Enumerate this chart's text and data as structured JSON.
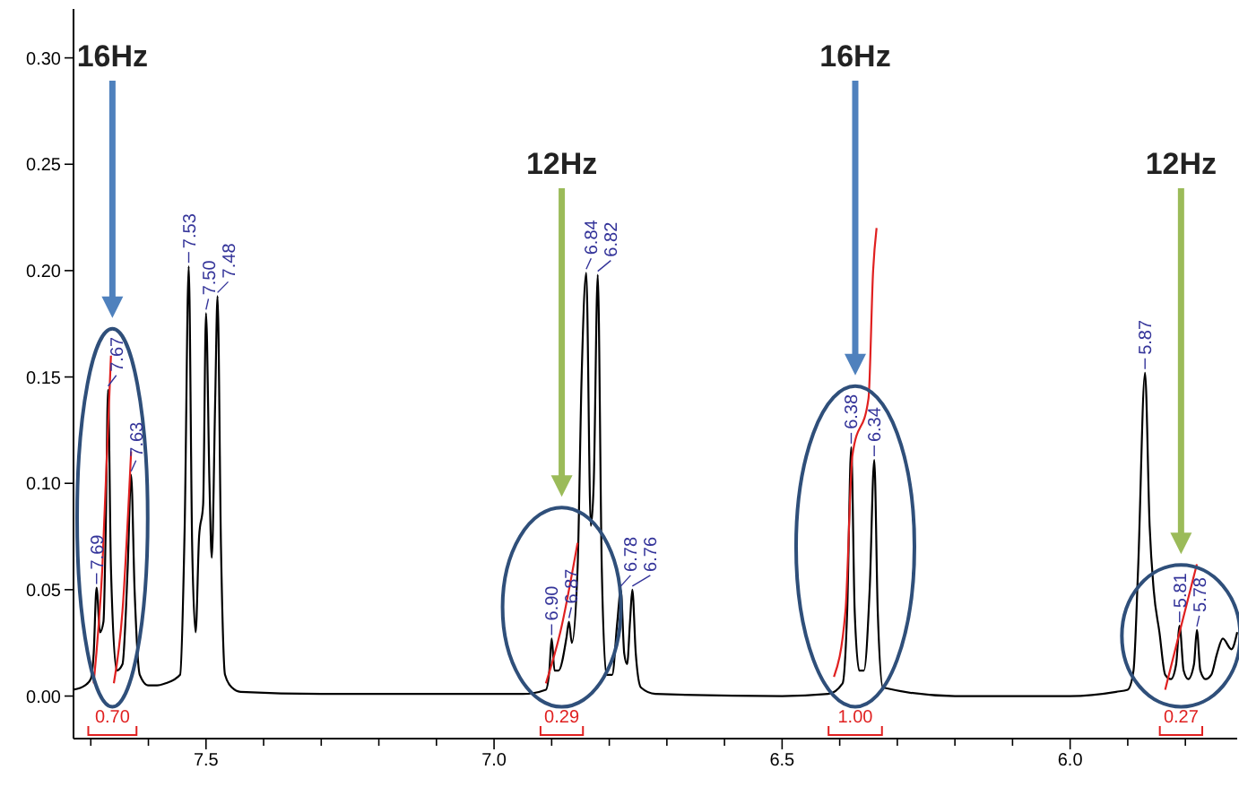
{
  "chart_data": {
    "type": "line",
    "xlim": [
      7.73,
      5.71
    ],
    "ylim": [
      -0.02,
      0.323
    ],
    "xticks": [
      {
        "value": 7.7,
        "label": null
      },
      {
        "value": 7.6,
        "label": null
      },
      7.5,
      {
        "value": 7.4,
        "label": null
      },
      {
        "value": 7.3,
        "label": null
      },
      {
        "value": 7.2,
        "label": null
      },
      {
        "value": 7.1,
        "label": null
      },
      {
        "value": 7.0,
        "label": "7.0"
      },
      {
        "value": 6.9,
        "label": null
      },
      {
        "value": 6.8,
        "label": null
      },
      {
        "value": 6.7,
        "label": null
      },
      {
        "value": 6.6,
        "label": null
      },
      6.5,
      {
        "value": 6.4,
        "label": null
      },
      {
        "value": 6.3,
        "label": null
      },
      {
        "value": 6.2,
        "label": null
      },
      {
        "value": 6.1,
        "label": null
      },
      {
        "value": 6.0,
        "label": "6.0"
      },
      {
        "value": 5.9,
        "label": null
      },
      {
        "value": 5.8,
        "label": null
      }
    ],
    "yticks": [
      {
        "value": 0,
        "label": "0.00"
      },
      {
        "value": 0.05,
        "label": "0.05"
      },
      {
        "value": 0.1,
        "label": "0.10"
      },
      {
        "value": 0.15,
        "label": "0.15"
      },
      {
        "value": 0.2,
        "label": "0.20"
      },
      {
        "value": 0.25,
        "label": "0.25"
      },
      {
        "value": 0.3,
        "label": "0.30"
      }
    ],
    "marker": "none",
    "series": [
      {
        "color": "#000000",
        "x": [
          7.73,
          7.71,
          7.7,
          7.695,
          7.69,
          7.684,
          7.678,
          7.674,
          7.67,
          7.665,
          7.655,
          7.645,
          7.636,
          7.63,
          7.624,
          7.615,
          7.6,
          7.585,
          7.57,
          7.545,
          7.537,
          7.53,
          7.524,
          7.518,
          7.512,
          7.505,
          7.5,
          7.494,
          7.49,
          7.484,
          7.48,
          7.474,
          7.467,
          7.455,
          7.44,
          7.3,
          7.1,
          6.95,
          6.91,
          6.904,
          6.9,
          6.895,
          6.888,
          6.874,
          6.87,
          6.865,
          6.855,
          6.848,
          6.84,
          6.832,
          6.827,
          6.82,
          6.813,
          6.805,
          6.795,
          6.786,
          6.78,
          6.774,
          6.769,
          6.764,
          6.76,
          6.754,
          6.745,
          6.72,
          6.5,
          6.42,
          6.395,
          6.387,
          6.38,
          6.374,
          6.366,
          6.358,
          6.348,
          6.34,
          6.334,
          6.325,
          6.2,
          6.0,
          5.92,
          5.9,
          5.89,
          5.882,
          5.87,
          5.862,
          5.855,
          5.845,
          5.835,
          5.825,
          5.816,
          5.81,
          5.803,
          5.795,
          5.785,
          5.78,
          5.774,
          5.765,
          5.755,
          5.745,
          5.735,
          5.72,
          5.71
        ],
        "values": [
          0.003,
          0.005,
          0.008,
          0.02,
          0.051,
          0.03,
          0.035,
          0.08,
          0.144,
          0.06,
          0.012,
          0.015,
          0.06,
          0.104,
          0.05,
          0.01,
          0.005,
          0.005,
          0.006,
          0.01,
          0.08,
          0.202,
          0.07,
          0.03,
          0.075,
          0.09,
          0.18,
          0.1,
          0.065,
          0.14,
          0.188,
          0.07,
          0.01,
          0.004,
          0.002,
          0.001,
          0.001,
          0.001,
          0.003,
          0.012,
          0.027,
          0.012,
          0.012,
          0.028,
          0.035,
          0.025,
          0.06,
          0.15,
          0.199,
          0.08,
          0.1,
          0.198,
          0.06,
          0.01,
          0.01,
          0.035,
          0.05,
          0.02,
          0.015,
          0.035,
          0.05,
          0.02,
          0.004,
          0.001,
          0.0,
          0.001,
          0.006,
          0.04,
          0.117,
          0.04,
          0.012,
          0.012,
          0.05,
          0.111,
          0.04,
          0.004,
          0.0,
          0.0,
          0.002,
          0.003,
          0.012,
          0.06,
          0.152,
          0.08,
          0.05,
          0.03,
          0.01,
          0.008,
          0.015,
          0.033,
          0.012,
          0.008,
          0.015,
          0.031,
          0.012,
          0.008,
          0.01,
          0.02,
          0.027,
          0.022,
          0.03
        ]
      },
      {
        "color": "#e02020",
        "x": [
          7.695,
          7.68,
          7.665
        ],
        "values": [
          0.006,
          0.06,
          0.16
        ]
      },
      {
        "color": "#e02020",
        "x": [
          7.66,
          7.645,
          7.63
        ],
        "values": [
          0.006,
          0.04,
          0.115
        ]
      },
      {
        "color": "#e02020",
        "x": [
          6.91,
          6.885,
          6.855
        ],
        "values": [
          0.006,
          0.03,
          0.072
        ]
      },
      {
        "color": "#e02020",
        "x": [
          6.41,
          6.39,
          6.378,
          6.35,
          6.342,
          6.336
        ],
        "values": [
          0.009,
          0.04,
          0.113,
          0.14,
          0.2,
          0.22
        ]
      },
      {
        "color": "#e02020",
        "x": [
          5.835,
          5.81,
          5.78
        ],
        "values": [
          0.003,
          0.03,
          0.062
        ]
      }
    ],
    "annotations": [
      {
        "text": "7.69",
        "x": 7.69,
        "y": 0.051
      },
      {
        "text": "7.67",
        "x": 7.67,
        "y": 0.144
      },
      {
        "text": "7.63",
        "x": 7.63,
        "y": 0.104
      },
      {
        "text": "7.53",
        "x": 7.53,
        "y": 0.202
      },
      {
        "text": "7.50",
        "x": 7.5,
        "y": 0.18
      },
      {
        "text": "7.48",
        "x": 7.48,
        "y": 0.188
      },
      {
        "text": "6.90",
        "x": 6.9,
        "y": 0.027
      },
      {
        "text": "6.87",
        "x": 6.87,
        "y": 0.035
      },
      {
        "text": "6.84",
        "x": 6.84,
        "y": 0.199
      },
      {
        "text": "6.82",
        "x": 6.82,
        "y": 0.198
      },
      {
        "text": "6.78",
        "x": 6.78,
        "y": 0.05
      },
      {
        "text": "6.76",
        "x": 6.76,
        "y": 0.05
      },
      {
        "text": "6.38",
        "x": 6.38,
        "y": 0.117
      },
      {
        "text": "6.34",
        "x": 6.34,
        "y": 0.111
      },
      {
        "text": "5.87",
        "x": 5.87,
        "y": 0.152
      },
      {
        "text": "5.81",
        "x": 5.81,
        "y": 0.033
      },
      {
        "text": "5.78",
        "x": 5.78,
        "y": 0.031
      },
      "16Hz",
      "12Hz",
      "16Hz",
      "12Hz",
      "0.70",
      "0.29",
      "1.00",
      "0.27"
    ]
  }
}
